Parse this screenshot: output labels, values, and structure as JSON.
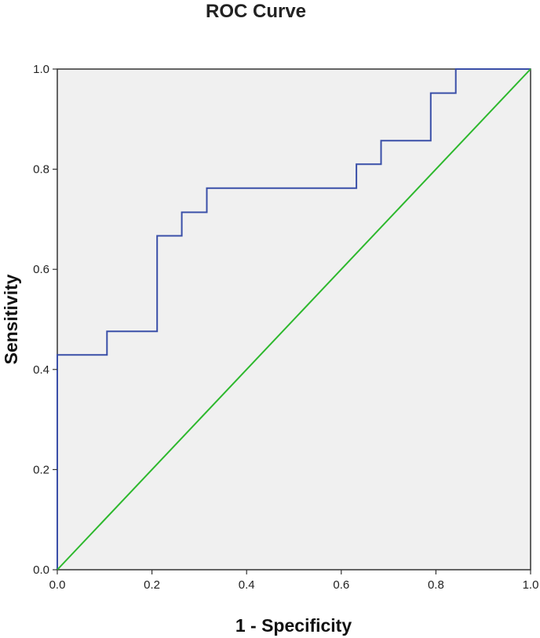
{
  "chart_data": {
    "type": "line",
    "title": "ROC Curve",
    "xlabel": "1 - Specificity",
    "ylabel": "Sensitivity",
    "xlim": [
      0.0,
      1.0
    ],
    "ylim": [
      0.0,
      1.0
    ],
    "x_ticks": [
      "0.0",
      "0.2",
      "0.4",
      "0.6",
      "0.8",
      "1.0"
    ],
    "y_ticks": [
      "0.0",
      "0.2",
      "0.4",
      "0.6",
      "0.8",
      "1.0"
    ],
    "grid": false,
    "legend": "none",
    "plot_background": "#f0f0f0",
    "series": [
      {
        "color": "#3a4fa8",
        "style": "step",
        "x": [
          0.0,
          0.0,
          0.105,
          0.105,
          0.211,
          0.211,
          0.263,
          0.263,
          0.316,
          0.316,
          0.632,
          0.632,
          0.684,
          0.684,
          0.789,
          0.789,
          0.842,
          0.842,
          1.0
        ],
        "y": [
          0.0,
          0.429,
          0.429,
          0.476,
          0.476,
          0.667,
          0.667,
          0.714,
          0.714,
          0.762,
          0.762,
          0.81,
          0.81,
          0.857,
          0.857,
          0.952,
          0.952,
          1.0,
          1.0
        ]
      },
      {
        "color": "#2db82d",
        "style": "line",
        "x": [
          0.0,
          1.0
        ],
        "y": [
          0.0,
          1.0
        ]
      }
    ]
  }
}
